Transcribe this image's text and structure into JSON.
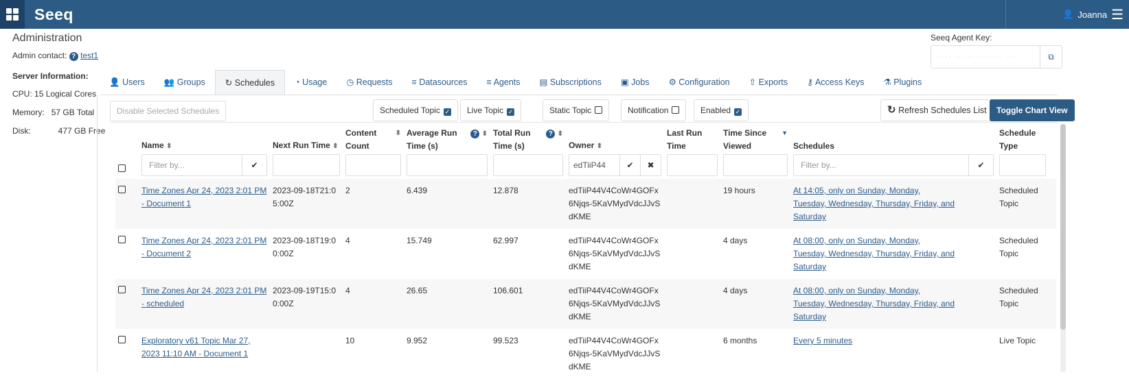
{
  "header": {
    "logo": "Seeq",
    "user": "Joanna"
  },
  "page": {
    "title": "Administration",
    "admin_contact_label": "Admin contact:",
    "admin_contact": "test1"
  },
  "server": {
    "heading": "Server Information:",
    "cpu_label": "CPU:",
    "cpu": "15 Logical Cores",
    "memory_label": "Memory:",
    "memory": "57 GB Total",
    "disk_label": "Disk:",
    "disk": "477 GB Free"
  },
  "agent_key": {
    "label": "Seeq Agent Key:",
    "value": "···· ··· ·· ······· ···"
  },
  "tabs": [
    {
      "label": "Users",
      "icon": "👤"
    },
    {
      "label": "Groups",
      "icon": "👥"
    },
    {
      "label": "Schedules",
      "icon": "↻"
    },
    {
      "label": "Usage",
      "icon": "◔"
    },
    {
      "label": "Requests",
      "icon": "◷"
    },
    {
      "label": "Datasources",
      "icon": "≡"
    },
    {
      "label": "Agents",
      "icon": "≡"
    },
    {
      "label": "Subscriptions",
      "icon": "▤"
    },
    {
      "label": "Jobs",
      "icon": "▣"
    },
    {
      "label": "Configuration",
      "icon": "⚙"
    },
    {
      "label": "Exports",
      "icon": "⇧"
    },
    {
      "label": "Access Keys",
      "icon": "⚷"
    },
    {
      "label": "Plugins",
      "icon": "⚗"
    }
  ],
  "toolbar": {
    "disable": "Disable Selected Schedules",
    "filters": [
      {
        "label": "Scheduled Topic",
        "checked": true
      },
      {
        "label": "Live Topic",
        "checked": true
      },
      {
        "label": "Static Topic",
        "checked": false
      },
      {
        "label": "Notification",
        "checked": false
      },
      {
        "label": "Enabled",
        "checked": true
      }
    ],
    "refresh": "Refresh Schedules List",
    "toggle": "Toggle Chart View"
  },
  "columns": {
    "name": "Name",
    "next": "Next Run Time",
    "content": "Content Count",
    "avg": "Average Run Time (s)",
    "total": "Total Run Time (s)",
    "owner": "Owner",
    "last": "Last Run Time",
    "since": "Time Since Viewed",
    "schedules": "Schedules",
    "type": "Schedule Type"
  },
  "filters": {
    "name_placeholder": "Filter by...",
    "owner_value": "edTiiP44",
    "schedules_placeholder": "Filter by..."
  },
  "rows": [
    {
      "name": "Time Zones Apr 24, 2023 2:01 PM - Document 1",
      "next": "2023-09-18T21:05:00Z",
      "content": "2",
      "avg": "6.439",
      "total": "12.878",
      "owner": "edTiiP44V4CoWr4GOFx6Njqs-5KaVMydVdcJJvSdKME",
      "last": "",
      "since": "19 hours",
      "schedule": "At 14:05, only on Sunday, Monday, Tuesday, Wednesday, Thursday, Friday, and Saturday",
      "type": "Scheduled Topic"
    },
    {
      "name": "Time Zones Apr 24, 2023 2:01 PM - Document 2",
      "next": "2023-09-18T19:00:00Z",
      "content": "4",
      "avg": "15.749",
      "total": "62.997",
      "owner": "edTiiP44V4CoWr4GOFx6Njqs-5KaVMydVdcJJvSdKME",
      "last": "",
      "since": "4 days",
      "schedule": "At 08:00, only on Sunday, Monday, Tuesday, Wednesday, Thursday, Friday, and Saturday",
      "type": "Scheduled Topic"
    },
    {
      "name": "Time Zones Apr 24, 2023 2:01 PM - scheduled",
      "next": "2023-09-19T15:00:00Z",
      "content": "4",
      "avg": "26.65",
      "total": "106.601",
      "owner": "edTiiP44V4CoWr4GOFx6Njqs-5KaVMydVdcJJvSdKME",
      "last": "",
      "since": "4 days",
      "schedule": "At 08:00, only on Sunday, Monday, Tuesday, Wednesday, Thursday, Friday, and Saturday",
      "type": "Scheduled Topic"
    },
    {
      "name": "Exploratory v61 Topic Mar 27, 2023 11:10 AM - Document 1",
      "next": "",
      "content": "10",
      "avg": "9.952",
      "total": "99.523",
      "owner": "edTiiP44V4CoWr4GOFx6Njqs-5KaVMydVdcJJvSdKME",
      "last": "",
      "since": "6 months",
      "schedule": "Every 5 minutes",
      "type": "Live Topic"
    }
  ],
  "colors": {
    "header": "#2c5c85",
    "link": "#2a5c8a"
  }
}
